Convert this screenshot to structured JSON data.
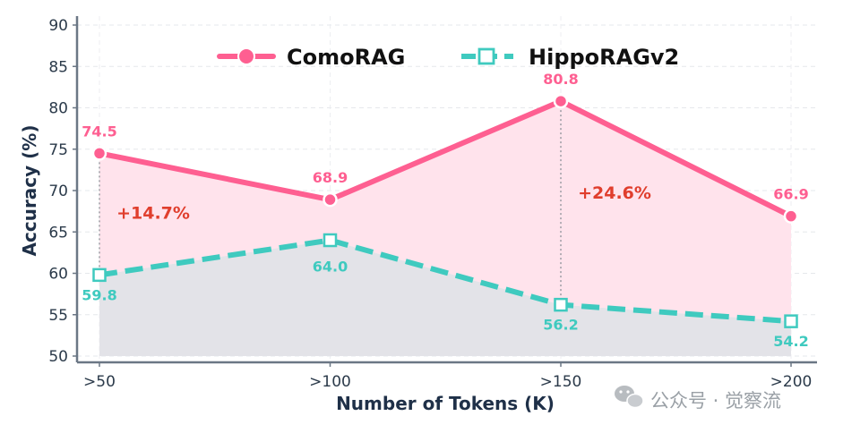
{
  "chart_data": {
    "type": "line",
    "categories": [
      ">50",
      ">100",
      ">150",
      ">200"
    ],
    "series": [
      {
        "name": "ComoRAG",
        "values": [
          74.5,
          68.9,
          80.8,
          66.9
        ],
        "color": "#fe5f91",
        "marker": "circle",
        "style": "solid"
      },
      {
        "name": "HippoRAGv2",
        "values": [
          59.8,
          64.0,
          56.2,
          54.2
        ],
        "color": "#3fcabf",
        "marker": "square",
        "style": "dashed"
      }
    ],
    "xlabel": "Number of Tokens (K)",
    "ylabel": "Accuracy (%)",
    "ylim": [
      50,
      90
    ],
    "yticks": [
      50,
      55,
      60,
      65,
      70,
      75,
      80,
      85,
      90
    ],
    "grid": true,
    "legend_position": "top-center",
    "annotations": [
      {
        "text": "+14.7%",
        "category": ">50",
        "color": "#e03e2d"
      },
      {
        "text": "+24.6%",
        "category": ">150",
        "color": "#e03e2d"
      }
    ],
    "fill_colors": {
      "top": "#ffe3ec",
      "bottom": "#e3e3e8"
    }
  },
  "watermark": {
    "text": "公众号 · 觉察流",
    "icon": "wechat-icon"
  }
}
